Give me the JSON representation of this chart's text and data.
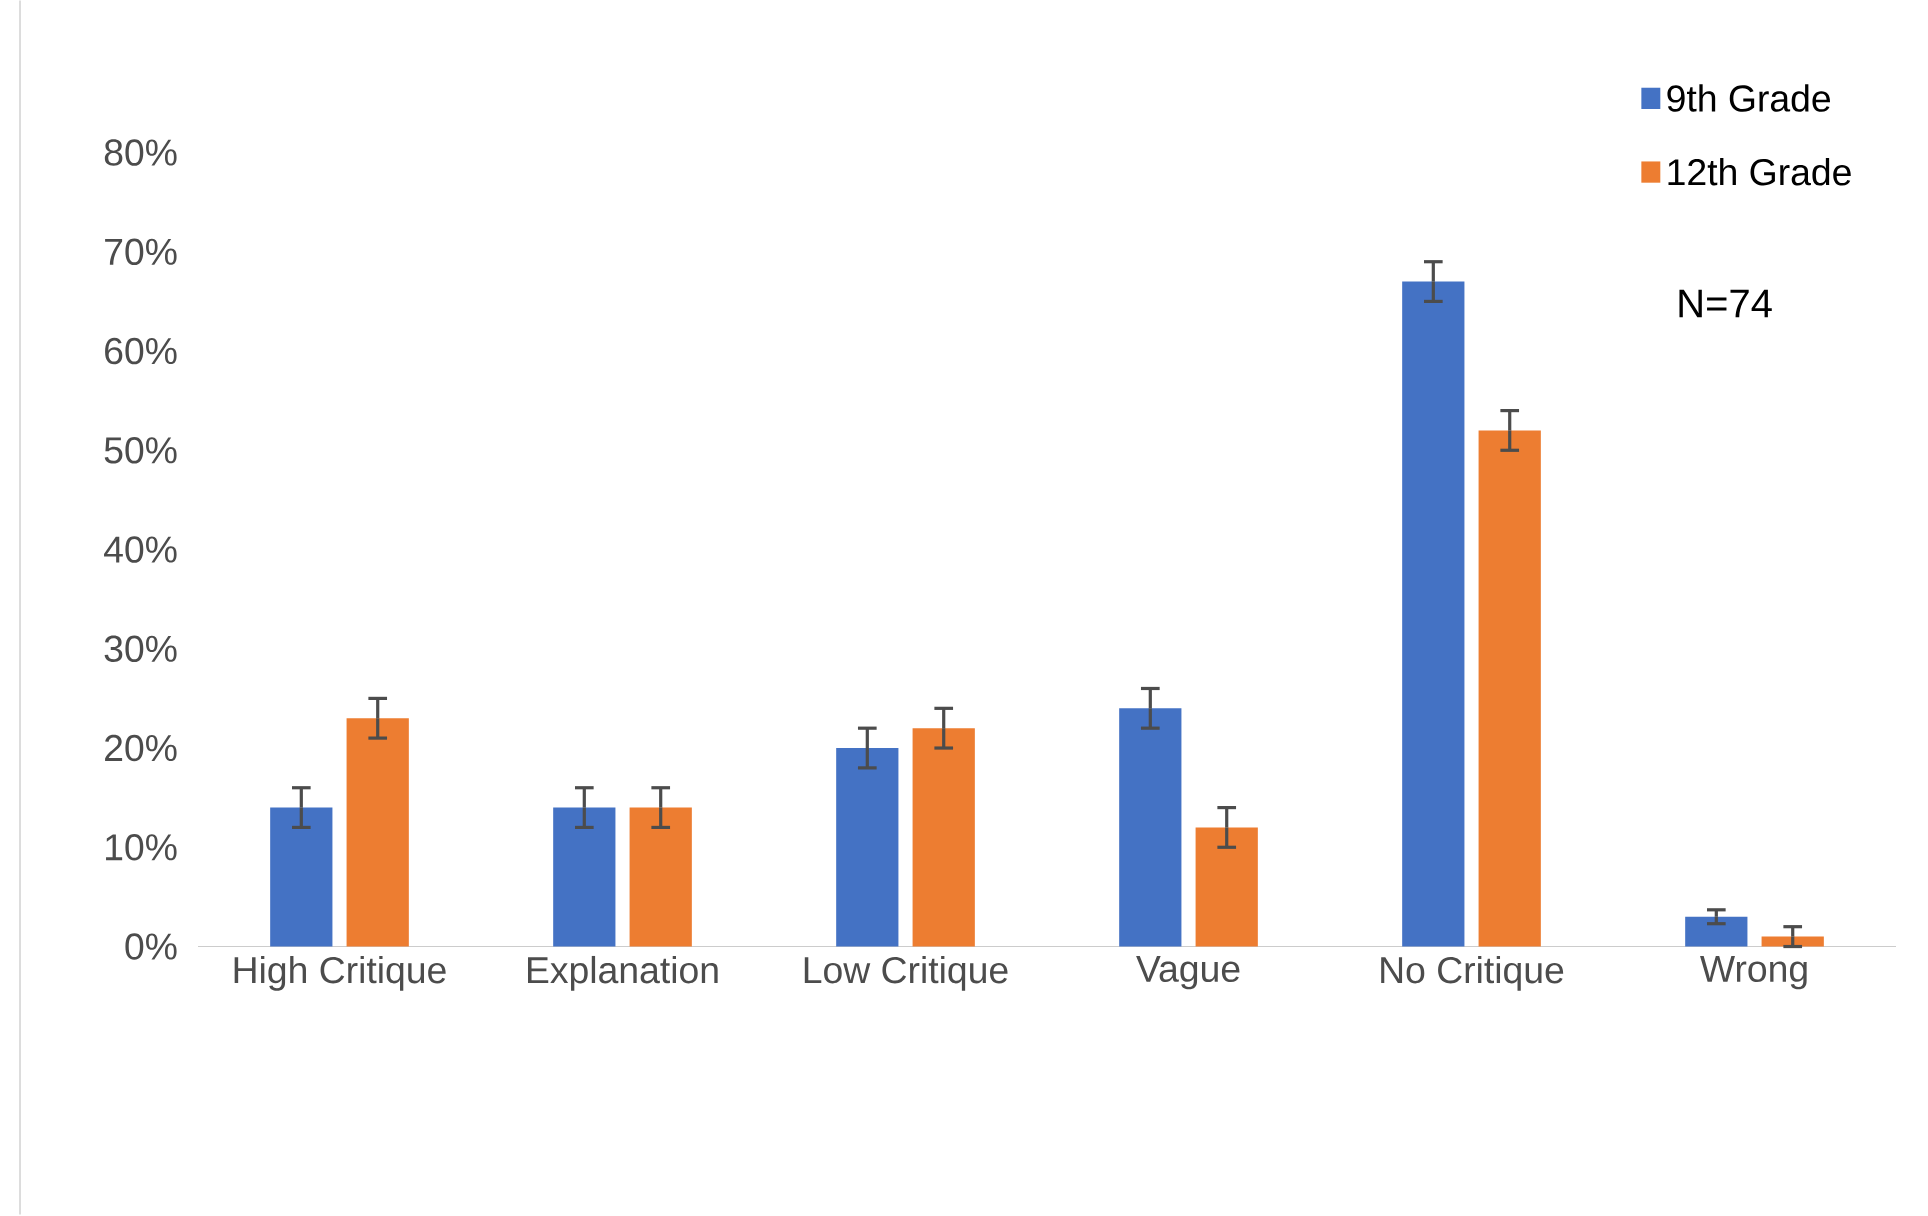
{
  "chart_data": {
    "type": "bar",
    "categories": [
      "High Critique",
      "Explanation",
      "Low Critique",
      "Vague",
      "No Critique",
      "Wrong"
    ],
    "series": [
      {
        "name": "9th Grade",
        "color": "#4472c4",
        "values": [
          14,
          14,
          20,
          24,
          67,
          3
        ],
        "errors": [
          2,
          2,
          2,
          2,
          2,
          0.7
        ]
      },
      {
        "name": "12th Grade",
        "color": "#ed7d31",
        "values": [
          23,
          14,
          22,
          12,
          52,
          1
        ],
        "errors": [
          2,
          2,
          2,
          2,
          2,
          1
        ]
      }
    ],
    "ylim": [
      0,
      80
    ],
    "yticks": [
      {
        "value": 0,
        "label": "0%"
      },
      {
        "value": 10,
        "label": "10%"
      },
      {
        "value": 20,
        "label": "20%"
      },
      {
        "value": 30,
        "label": "30%"
      },
      {
        "value": 40,
        "label": "40%"
      },
      {
        "value": 50,
        "label": "50%"
      },
      {
        "value": 60,
        "label": "60%"
      },
      {
        "value": 70,
        "label": "70%"
      },
      {
        "value": 80,
        "label": "80%"
      }
    ],
    "grid": false,
    "legend": "top right",
    "annotations": [
      "N=74"
    ]
  }
}
